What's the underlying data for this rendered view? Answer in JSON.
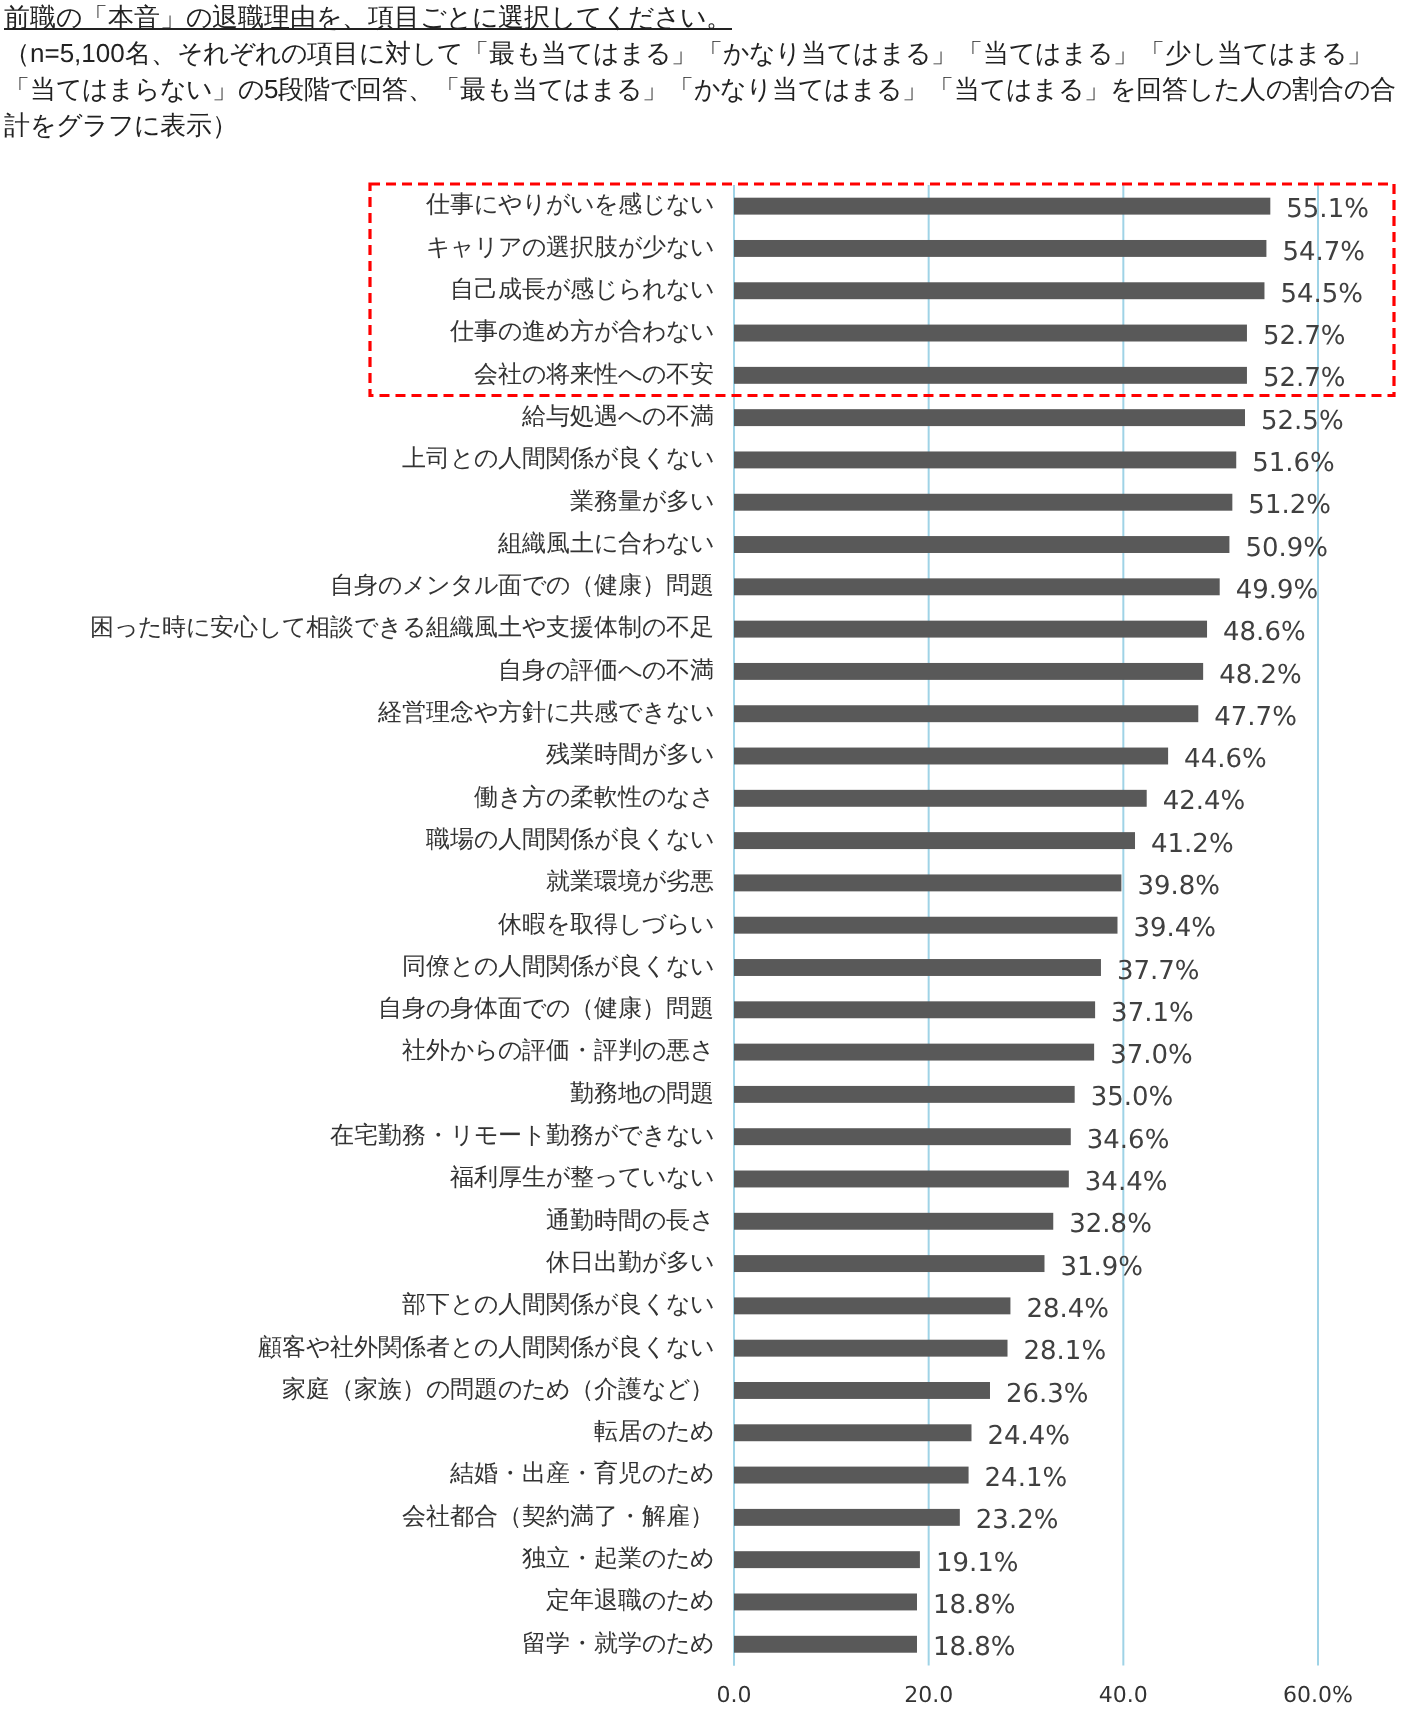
{
  "chart_data": {
    "type": "bar",
    "orientation": "horizontal",
    "title": "前職の「本音」の退職理由を、項目ごとに選択してください。",
    "subtitle": "（n=5,100名、それぞれの項目に対して「最も当てはまる」「かなり当てはまる」「当てはまる」「少し当てはまる」「当てはまらない」の5段階で回答、「最も当てはまる」「かなり当てはまる」「当てはまる」を回答した人の割合の合計をグラフに表示）",
    "categories": [
      "仕事にやりがいを感じない",
      "キャリアの選択肢が少ない",
      "自己成長が感じられない",
      "仕事の進め方が合わない",
      "会社の将来性への不安",
      "給与処遇への不満",
      "上司との人間関係が良くない",
      "業務量が多い",
      "組織風土に合わない",
      "自身のメンタル面での（健康）問題",
      "困った時に安心して相談できる組織風土や支援体制の不足",
      "自身の評価への不満",
      "経営理念や方針に共感できない",
      "残業時間が多い",
      "働き方の柔軟性のなさ",
      "職場の人間関係が良くない",
      "就業環境が劣悪",
      "休暇を取得しづらい",
      "同僚との人間関係が良くない",
      "自身の身体面での（健康）問題",
      "社外からの評価・評判の悪さ",
      "勤務地の問題",
      "在宅勤務・リモート勤務ができない",
      "福利厚生が整っていない",
      "通勤時間の長さ",
      "休日出勤が多い",
      "部下との人間関係が良くない",
      "顧客や社外関係者との人間関係が良くない",
      "家庭（家族）の問題のため（介護など）",
      "転居のため",
      "結婚・出産・育児のため",
      "会社都合（契約満了・解雇）",
      "独立・起業のため",
      "定年退職のため",
      "留学・就学のため"
    ],
    "values": [
      55.1,
      54.7,
      54.5,
      52.7,
      52.7,
      52.5,
      51.6,
      51.2,
      50.9,
      49.9,
      48.6,
      48.2,
      47.7,
      44.6,
      42.4,
      41.2,
      39.8,
      39.4,
      37.7,
      37.1,
      37.0,
      35.0,
      34.6,
      34.4,
      32.8,
      31.9,
      28.4,
      28.1,
      26.3,
      24.4,
      24.1,
      23.2,
      19.1,
      18.8,
      18.8
    ],
    "value_labels": [
      "55.1%",
      "54.7%",
      "54.5%",
      "52.7%",
      "52.7%",
      "52.5%",
      "51.6%",
      "51.2%",
      "50.9%",
      "49.9%",
      "48.6%",
      "48.2%",
      "47.7%",
      "44.6%",
      "42.4%",
      "41.2%",
      "39.8%",
      "39.4%",
      "37.7%",
      "37.1%",
      "37.0%",
      "35.0%",
      "34.6%",
      "34.4%",
      "32.8%",
      "31.9%",
      "28.4%",
      "28.1%",
      "26.3%",
      "24.4%",
      "24.1%",
      "23.2%",
      "19.1%",
      "18.8%",
      "18.8%"
    ],
    "color": "#595959",
    "xlim": [
      0,
      60
    ],
    "xticks": [
      {
        "value": 0,
        "label": "0.0"
      },
      {
        "value": 20,
        "label": "20.0"
      },
      {
        "value": 40,
        "label": "40.0"
      },
      {
        "value": 60,
        "label": "60.0%"
      }
    ],
    "grid": "x"
  }
}
